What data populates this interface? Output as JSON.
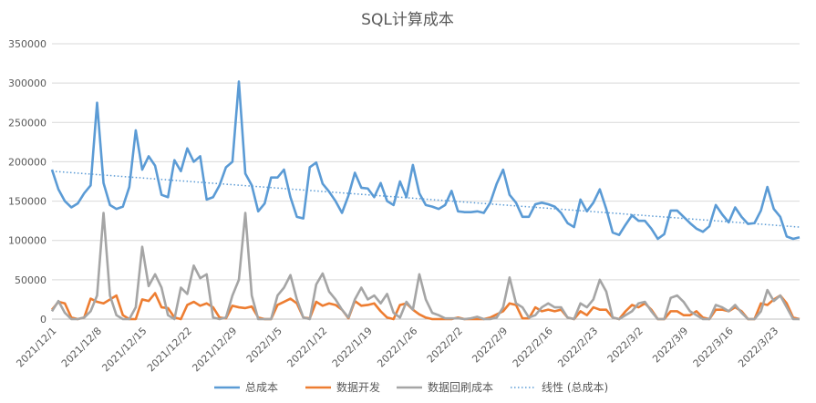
{
  "chart_data": {
    "type": "line",
    "title": "SQL计算成本",
    "ylim": [
      0,
      350000
    ],
    "yticks": [
      "0",
      "50000",
      "100000",
      "150000",
      "200000",
      "250000",
      "300000",
      "350000"
    ],
    "grid": true,
    "legend_position": "bottom",
    "x_tick_labels": [
      "2021/12/1",
      "2021/12/8",
      "2021/12/15",
      "2021/12/22",
      "2021/12/29",
      "2022/1/5",
      "2022/1/12",
      "2022/1/19",
      "2022/1/26",
      "2022/2/2",
      "2022/2/9",
      "2022/2/16",
      "2022/2/23",
      "2022/3/2",
      "2022/3/9",
      "2022/3/16",
      "2022/3/23"
    ],
    "x_start": "2021/12/1",
    "x_end": "2022/3/30",
    "series": [
      {
        "name": "总成本",
        "color": "#5b9bd5",
        "style": "solid",
        "values": [
          190000,
          165000,
          150000,
          142000,
          147000,
          160000,
          170000,
          275000,
          173000,
          145000,
          140000,
          143000,
          168000,
          240000,
          190000,
          207000,
          195000,
          158000,
          155000,
          202000,
          188000,
          217000,
          200000,
          207000,
          152000,
          155000,
          170000,
          193000,
          200000,
          302000,
          185000,
          170000,
          137000,
          147000,
          180000,
          180000,
          190000,
          155000,
          130000,
          128000,
          193000,
          199000,
          172000,
          162000,
          150000,
          135000,
          157000,
          186000,
          167000,
          166000,
          155000,
          173000,
          150000,
          145000,
          175000,
          155000,
          196000,
          160000,
          145000,
          143000,
          140000,
          145000,
          163000,
          137000,
          136000,
          136000,
          137000,
          135000,
          148000,
          172000,
          190000,
          158000,
          148000,
          130000,
          130000,
          146000,
          148000,
          146000,
          143000,
          135000,
          122000,
          117000,
          152000,
          137000,
          148000,
          165000,
          140000,
          110000,
          107000,
          120000,
          132000,
          125000,
          125000,
          115000,
          102000,
          108000,
          138000,
          138000,
          130000,
          122000,
          115000,
          111000,
          118000,
          145000,
          133000,
          123000,
          142000,
          130000,
          121000,
          122000,
          138000,
          168000,
          140000,
          130000,
          105000,
          102000,
          104000
        ]
      },
      {
        "name": "数据开发",
        "color": "#ed7d31",
        "style": "solid",
        "values": [
          12000,
          22000,
          20000,
          2000,
          0,
          2000,
          26000,
          22000,
          20000,
          25000,
          30000,
          5000,
          0,
          0,
          25000,
          23000,
          33000,
          15000,
          14000,
          2000,
          0,
          18000,
          22000,
          17000,
          20000,
          15000,
          2000,
          1000,
          17000,
          15000,
          14000,
          16000,
          2000,
          0,
          0,
          18000,
          22000,
          26000,
          20000,
          2000,
          1000,
          22000,
          17000,
          20000,
          18000,
          12000,
          1000,
          23000,
          17000,
          18000,
          20000,
          10000,
          2000,
          0,
          18000,
          20000,
          12000,
          6000,
          2000,
          0,
          0,
          0,
          0,
          2000,
          0,
          0,
          0,
          0,
          2000,
          6000,
          10000,
          20000,
          18000,
          1000,
          1000,
          15000,
          10000,
          12000,
          10000,
          12000,
          2000,
          0,
          10000,
          5000,
          15000,
          12000,
          12000,
          2000,
          0,
          10000,
          18000,
          15000,
          20000,
          12000,
          0,
          0,
          10000,
          10000,
          5000,
          5000,
          10000,
          2000,
          0,
          12000,
          12000,
          10000,
          15000,
          10000,
          0,
          0,
          20000,
          18000,
          25000,
          30000,
          20000,
          2000,
          0
        ]
      },
      {
        "name": "数据回刷成本",
        "color": "#a5a5a5",
        "style": "solid",
        "values": [
          10000,
          23000,
          8000,
          0,
          0,
          2000,
          10000,
          30000,
          135000,
          30000,
          5000,
          0,
          0,
          15000,
          92000,
          42000,
          57000,
          40000,
          5000,
          0,
          40000,
          32000,
          68000,
          52000,
          57000,
          2000,
          0,
          2000,
          30000,
          50000,
          135000,
          30000,
          0,
          0,
          0,
          30000,
          40000,
          56000,
          25000,
          2000,
          0,
          44000,
          58000,
          35000,
          25000,
          12000,
          2000,
          25000,
          40000,
          25000,
          30000,
          20000,
          32000,
          8000,
          2000,
          22000,
          12000,
          57000,
          25000,
          8000,
          5000,
          1000,
          1000,
          1000,
          0,
          1000,
          3000,
          0,
          0,
          2000,
          15000,
          53000,
          20000,
          15000,
          2000,
          5000,
          15000,
          20000,
          15000,
          15000,
          2000,
          0,
          20000,
          15000,
          25000,
          50000,
          35000,
          2000,
          0,
          5000,
          10000,
          20000,
          22000,
          10000,
          0,
          0,
          27000,
          30000,
          22000,
          10000,
          5000,
          0,
          0,
          18000,
          15000,
          10000,
          18000,
          8000,
          0,
          0,
          10000,
          37000,
          23000,
          30000,
          15000,
          0,
          0
        ]
      },
      {
        "name": "线性 (总成本)",
        "color": "#5b9bd5",
        "style": "dotted",
        "values": [
          188000,
          117000
        ],
        "trendline_of": "总成本"
      }
    ]
  }
}
